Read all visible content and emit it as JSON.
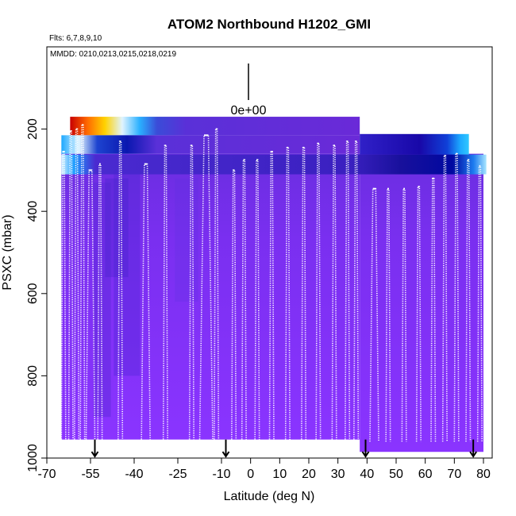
{
  "chart_data": {
    "type": "heatmap",
    "title": "ATOM2 Northbound H1202_GMI",
    "flights_note": "Flts: 6,7,8,9,10",
    "dates_note": "MMDD: 0210,0213,0215,0218,0219",
    "xlabel": "Latitude (deg N)",
    "ylabel": "PSXC (mbar)",
    "xlim": [
      -70,
      83
    ],
    "ylim": [
      1000,
      0
    ],
    "x_ticks": [
      {
        "value": -70,
        "label": "-70"
      },
      {
        "value": -55,
        "label": "-55"
      },
      {
        "value": -40,
        "label": "-40"
      },
      {
        "value": -25,
        "label": "-25"
      },
      {
        "value": -10,
        "label": "-10"
      },
      {
        "value": 0,
        "label": "0"
      },
      {
        "value": 10,
        "label": "10"
      },
      {
        "value": 20,
        "label": "20"
      },
      {
        "value": 30,
        "label": "30"
      },
      {
        "value": 40,
        "label": "40"
      },
      {
        "value": 50,
        "label": "50"
      },
      {
        "value": 60,
        "label": "60"
      },
      {
        "value": 70,
        "label": "70"
      },
      {
        "value": 80,
        "label": "80"
      }
    ],
    "y_ticks": [
      {
        "value": 200,
        "label": "200"
      },
      {
        "value": 400,
        "label": "400"
      },
      {
        "value": 600,
        "label": "600"
      },
      {
        "value": 800,
        "label": "800"
      },
      {
        "value": 1000,
        "label": "1000"
      }
    ],
    "color_legend": {
      "value_label": "0e+00"
    },
    "flight_boundaries_lat": [
      -53.5,
      -8.5,
      39.5,
      76.5
    ],
    "color_bands": [
      {
        "x0": -62,
        "x1": 37.5,
        "p_top": 170,
        "p_bot": 215,
        "grad": "top"
      },
      {
        "x0": -65,
        "x1": 37.5,
        "p_top": 215,
        "p_bot": 260,
        "grad": "mid"
      },
      {
        "x0": -65,
        "x1": 37.5,
        "p_top": 260,
        "p_bot": 955,
        "fill": "#7f2ff0"
      },
      {
        "x0": 37.5,
        "x1": 80,
        "p_top": 260,
        "p_bot": 985,
        "fill": "#7f2ff0"
      },
      {
        "x0": 37.5,
        "x1": 75,
        "p_top": 212,
        "p_bot": 262,
        "grad": "right"
      },
      {
        "x0": -65,
        "x1": 81,
        "p_top": 262,
        "p_bot": 310,
        "grad": "band"
      }
    ],
    "profiles": [
      {
        "x": [
          -65,
          -64.5,
          -64,
          -63.5,
          -63
        ],
        "top": 255
      },
      {
        "x": [
          -62.5,
          -62,
          -61.5,
          -61
        ],
        "top": 205
      },
      {
        "x": [
          -60.5,
          -60,
          -59.5,
          -59
        ],
        "top": 200
      },
      {
        "x": [
          -58.5,
          -58,
          -57.5,
          -57
        ],
        "top": 190
      },
      {
        "x": [
          -56.5,
          -55.5,
          -54.5,
          -53.5
        ],
        "top": 300
      },
      {
        "x": [
          -52.5,
          -52,
          -51.5,
          -51
        ],
        "top": 285
      },
      {
        "x": [
          -45.5,
          -45,
          -44.5,
          -44
        ],
        "top": 230
      },
      {
        "x": [
          -37.5,
          -36.5,
          -35.5,
          -34.5
        ],
        "top": 285
      },
      {
        "x": [
          -30,
          -29.5,
          -29,
          -28.5
        ],
        "top": 240
      },
      {
        "x": [
          -21,
          -20.5,
          -20,
          -19.5
        ],
        "top": 240
      },
      {
        "x": [
          -17.5,
          -16,
          -14.5,
          -13
        ],
        "top": 215
      },
      {
        "x": [
          -12.5,
          -12,
          -11.5,
          -11
        ],
        "top": 200
      },
      {
        "x": [
          -6.5,
          -6,
          -5.5,
          -5
        ],
        "top": 300
      },
      {
        "x": [
          -3,
          -2.5,
          -2,
          -1.5
        ],
        "top": 275
      },
      {
        "x": [
          1.5,
          2,
          2.5,
          3
        ],
        "top": 275
      },
      {
        "x": [
          6.5,
          7,
          7.5,
          8
        ],
        "top": 255
      },
      {
        "x": [
          12,
          12.5,
          13,
          13.5
        ],
        "top": 245
      },
      {
        "x": [
          17.5,
          18,
          18.5,
          19
        ],
        "top": 245
      },
      {
        "x": [
          22.5,
          23,
          23.5,
          24
        ],
        "top": 235
      },
      {
        "x": [
          28,
          28.5,
          29,
          29.5
        ],
        "top": 240
      },
      {
        "x": [
          32.5,
          33,
          33.5,
          34
        ],
        "top": 230
      },
      {
        "x": [
          35.5,
          36,
          36.5,
          37
        ],
        "top": 230
      },
      {
        "x": [
          41,
          42,
          43,
          44
        ],
        "top": 345
      },
      {
        "x": [
          46.5,
          47,
          47.5,
          48
        ],
        "top": 345
      },
      {
        "x": [
          52,
          52.5,
          53,
          53.5
        ],
        "top": 345
      },
      {
        "x": [
          57,
          57.5,
          58,
          58.5
        ],
        "top": 340
      },
      {
        "x": [
          62,
          62.5,
          63,
          63.5
        ],
        "top": 320
      },
      {
        "x": [
          66,
          66.5,
          67,
          67.5
        ],
        "top": 265
      },
      {
        "x": [
          70,
          70.5,
          71,
          71.5
        ],
        "top": 260
      },
      {
        "x": [
          74,
          74.5,
          75,
          75.5
        ],
        "top": 275
      },
      {
        "x": [
          78,
          78.5,
          79,
          79.5
        ],
        "top": 290
      }
    ]
  }
}
